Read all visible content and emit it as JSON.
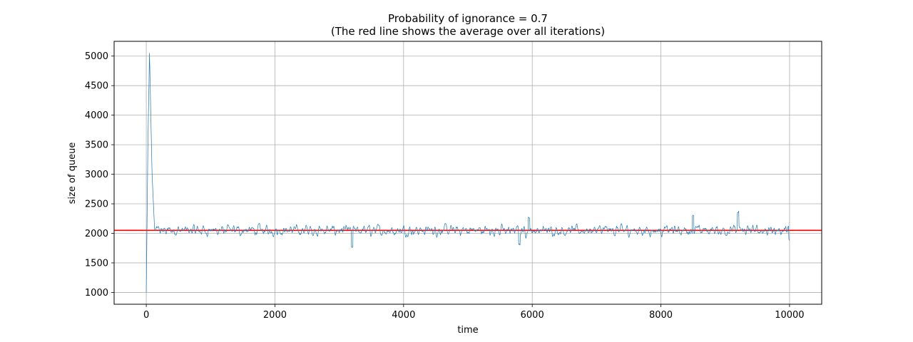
{
  "chart_data": {
    "type": "line",
    "title": "Probability of ignorance  = 0.7",
    "subtitle": "(The red line shows the average over all iterations)",
    "xlabel": "time",
    "ylabel": "size of queue",
    "xlim": [
      -500,
      10500
    ],
    "ylim": [
      800,
      5250
    ],
    "x_ticks": [
      0,
      2000,
      4000,
      6000,
      8000,
      10000
    ],
    "y_ticks": [
      1000,
      1500,
      2000,
      2500,
      3000,
      3500,
      4000,
      4500,
      5000
    ],
    "grid": true,
    "average_line": {
      "y": 2050,
      "color": "#ff0000"
    },
    "series": [
      {
        "color": "#1f77b4",
        "x_start": 0,
        "x_end": 10000,
        "mean": 2050,
        "noise_amplitude": 90,
        "spike": [
          {
            "x": 0,
            "y": 1000
          },
          {
            "x": 25,
            "y": 3500
          },
          {
            "x": 50,
            "y": 5050
          },
          {
            "x": 90,
            "y": 3000
          },
          {
            "x": 130,
            "y": 2050
          }
        ],
        "notable_points": [
          {
            "x": 3200,
            "y": 1760
          },
          {
            "x": 5800,
            "y": 1820
          },
          {
            "x": 5950,
            "y": 2260
          },
          {
            "x": 8500,
            "y": 2310
          },
          {
            "x": 9200,
            "y": 2350
          },
          {
            "x": 10000,
            "y": 1880
          }
        ]
      }
    ]
  }
}
